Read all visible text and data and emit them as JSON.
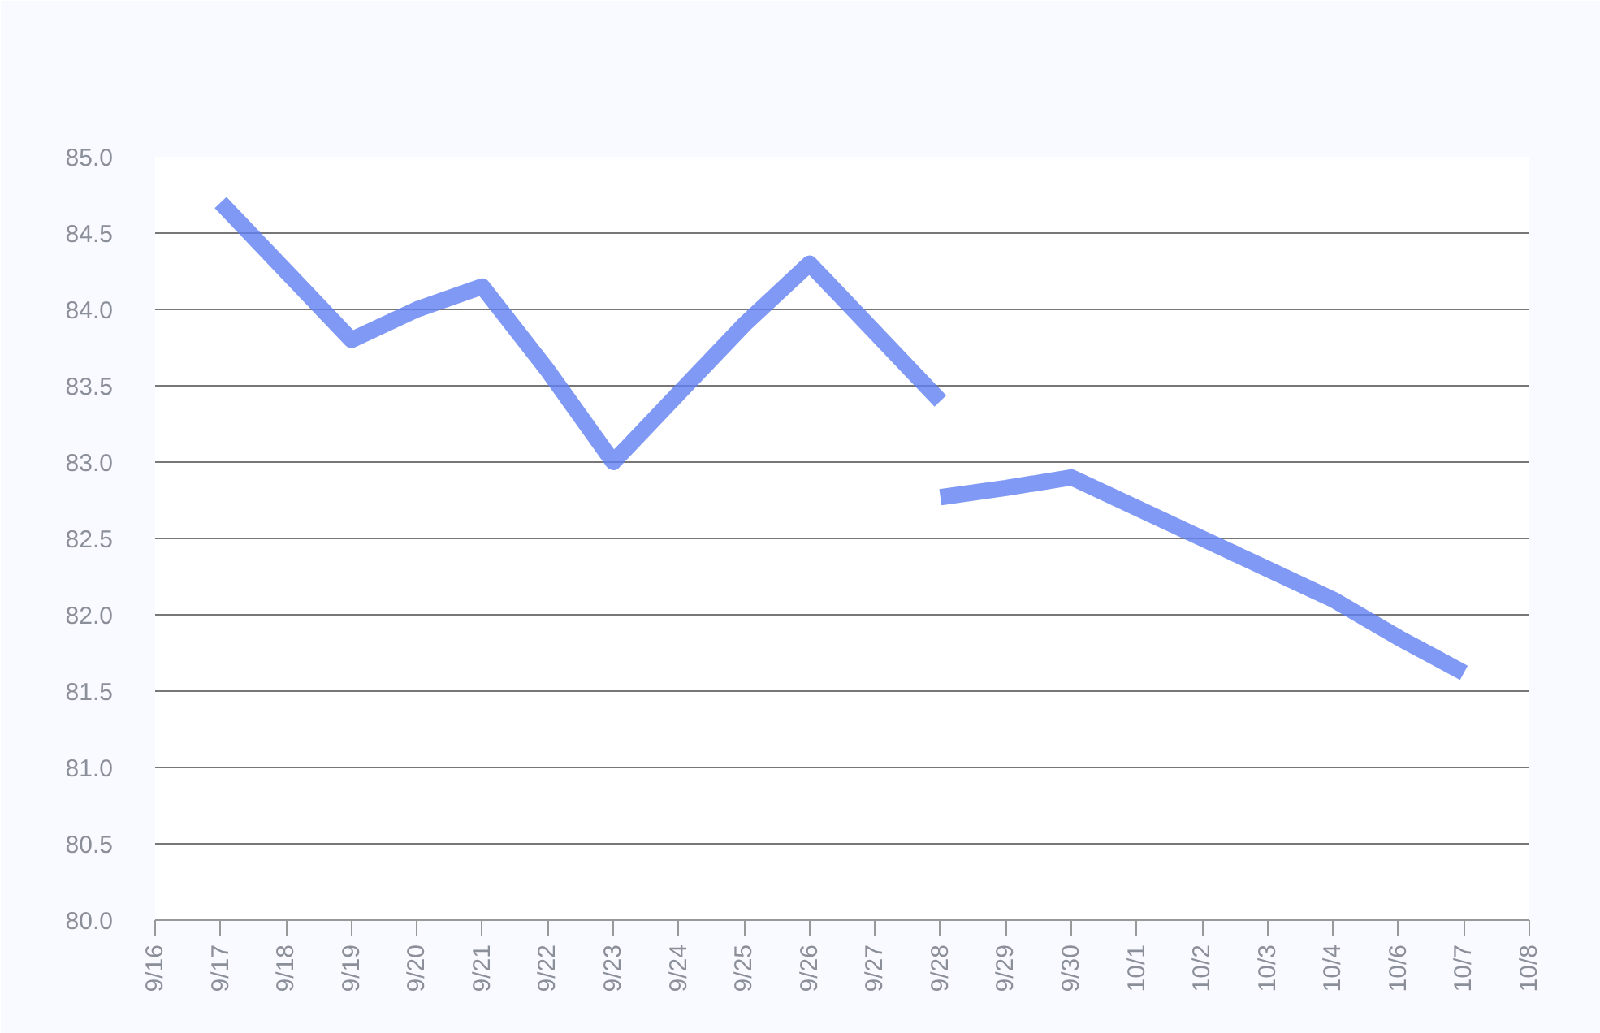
{
  "chart_data": {
    "type": "line",
    "categories": [
      "9/16",
      "9/17",
      "9/18",
      "9/19",
      "9/20",
      "9/21",
      "9/22",
      "9/23",
      "9/24",
      "9/25",
      "9/26",
      "9/27",
      "9/28",
      "9/29",
      "9/30",
      "10/1",
      "10/2",
      "10/3",
      "10/4",
      "10/6",
      "10/7",
      "10/8"
    ],
    "series": [
      {
        "color": "#5f7ff2",
        "values": [
          null,
          84.7,
          84.25,
          83.8,
          84.0,
          84.15,
          83.6,
          83.0,
          83.45,
          83.9,
          84.3,
          83.85,
          83.4,
          null,
          null,
          null,
          null,
          null,
          null,
          null,
          null,
          null
        ]
      },
      {
        "color": "#5f7ff2",
        "values": [
          null,
          null,
          null,
          null,
          null,
          null,
          null,
          null,
          null,
          null,
          null,
          null,
          82.77,
          82.83,
          82.9,
          82.7,
          82.5,
          82.3,
          82.1,
          81.85,
          81.62,
          null
        ]
      }
    ],
    "ylim": [
      80.0,
      85.0
    ],
    "yticks": [
      {
        "value": 80,
        "label": "80.0"
      },
      {
        "value": 80.5,
        "label": "80.5"
      },
      {
        "value": 81,
        "label": "81.0"
      },
      {
        "value": 81.5,
        "label": "81.5"
      },
      {
        "value": 82,
        "label": "82.0"
      },
      {
        "value": 82.5,
        "label": "82.5"
      },
      {
        "value": 83,
        "label": "83.0"
      },
      {
        "value": 83.5,
        "label": "83.5"
      },
      {
        "value": 84,
        "label": "84.0"
      },
      {
        "value": 84.5,
        "label": "84.5"
      },
      {
        "value": 85,
        "label": "85.0"
      }
    ],
    "grid": "y",
    "marker": "none",
    "line_style": "solid"
  }
}
